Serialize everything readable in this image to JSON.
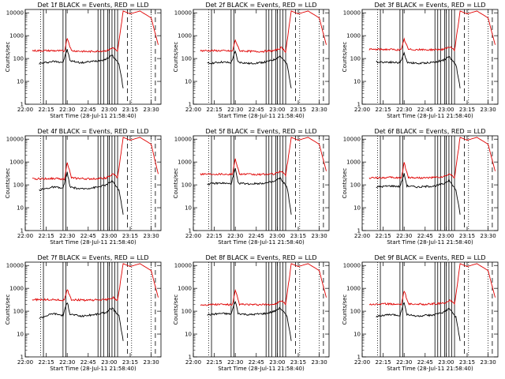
{
  "figure": {
    "background": "#ffffff",
    "black_color": "#000000",
    "red_color": "#e00000"
  },
  "chart_data": [
    {
      "type": "line",
      "title": "Det 1f BLACK = Events, RED = LLD",
      "xlabel": "Start Time (28-Jul-11 21:58:40)",
      "ylabel": "Counts/sec",
      "xticks": [
        "22:00",
        "22:15",
        "22:30",
        "22:45",
        "23:00",
        "23:15",
        "23:30"
      ],
      "yticks": [
        "1",
        "10",
        "100",
        "1000",
        "10000"
      ],
      "ylim": [
        1,
        14000
      ],
      "yscale": "log",
      "variant": 0,
      "series": [
        {
          "color": "#000000",
          "x": [
            "22:10",
            "22:20",
            "22:27",
            "22:30",
            "22:32",
            "22:40",
            "22:52",
            "22:58",
            "23:02",
            "23:07",
            "23:10"
          ],
          "y": [
            60,
            75,
            70,
            250,
            80,
            65,
            80,
            95,
            140,
            60,
            5
          ]
        },
        {
          "color": "#e00000",
          "x": [
            "22:05",
            "22:20",
            "22:28",
            "22:30",
            "22:33",
            "22:45",
            "22:58",
            "23:03",
            "23:06",
            "23:10",
            "23:15",
            "23:22",
            "23:30",
            "23:35"
          ],
          "y": [
            220,
            220,
            210,
            800,
            220,
            200,
            220,
            300,
            200,
            12000,
            9000,
            12000,
            6000,
            400
          ]
        }
      ]
    },
    {
      "type": "line",
      "title": "Det 2f BLACK = Events, RED = LLD",
      "xlabel": "Start Time (28-Jul-11 21:58:40)",
      "ylabel": "Counts/sec",
      "xticks": [
        "22:00",
        "22:15",
        "22:30",
        "22:45",
        "23:00",
        "23:15",
        "23:30"
      ],
      "yticks": [
        "1",
        "10",
        "100",
        "1000",
        "10000"
      ],
      "ylim": [
        1,
        14000
      ],
      "yscale": "log",
      "variant": 1,
      "series": [
        {
          "color": "#000000",
          "x": [
            "22:10",
            "22:20",
            "22:27",
            "22:30",
            "22:32",
            "22:40",
            "22:52",
            "22:58",
            "23:02",
            "23:07",
            "23:10"
          ],
          "y": [
            60,
            70,
            65,
            200,
            70,
            60,
            70,
            90,
            130,
            55,
            5
          ]
        },
        {
          "color": "#e00000",
          "x": [
            "22:05",
            "22:20",
            "22:28",
            "22:30",
            "22:33",
            "22:45",
            "22:58",
            "23:03",
            "23:06",
            "23:10",
            "23:15",
            "23:22",
            "23:30",
            "23:35"
          ],
          "y": [
            220,
            220,
            210,
            650,
            220,
            200,
            220,
            300,
            200,
            12000,
            9000,
            12000,
            6000,
            400
          ]
        }
      ]
    },
    {
      "type": "line",
      "title": "Det 3f BLACK = Events, RED = LLD",
      "xlabel": "Start Time (28-Jul-11 21:58:40)",
      "ylabel": "Counts/sec",
      "xticks": [
        "22:00",
        "22:15",
        "22:30",
        "22:45",
        "23:00",
        "23:15",
        "23:30"
      ],
      "yticks": [
        "1",
        "10",
        "100",
        "1000",
        "10000"
      ],
      "ylim": [
        1,
        14000
      ],
      "yscale": "log",
      "variant": 2,
      "series": [
        {
          "color": "#000000",
          "x": [
            "22:10",
            "22:20",
            "22:27",
            "22:30",
            "22:32",
            "22:40",
            "22:52",
            "22:58",
            "23:02",
            "23:07",
            "23:10"
          ],
          "y": [
            70,
            70,
            65,
            170,
            70,
            60,
            70,
            85,
            120,
            55,
            5
          ]
        },
        {
          "color": "#e00000",
          "x": [
            "22:05",
            "22:20",
            "22:28",
            "22:30",
            "22:33",
            "22:45",
            "22:58",
            "23:03",
            "23:06",
            "23:10",
            "23:15",
            "23:22",
            "23:30",
            "23:35"
          ],
          "y": [
            250,
            250,
            240,
            700,
            250,
            240,
            250,
            320,
            220,
            12000,
            9000,
            12000,
            6000,
            400
          ]
        }
      ]
    },
    {
      "type": "line",
      "title": "Det 4f BLACK = Events, RED = LLD",
      "xlabel": "Start Time (28-Jul-11 21:58:40)",
      "ylabel": "Counts/sec",
      "xticks": [
        "22:00",
        "22:15",
        "22:30",
        "22:45",
        "23:00",
        "23:15",
        "23:30"
      ],
      "yticks": [
        "1",
        "10",
        "100",
        "1000",
        "10000"
      ],
      "ylim": [
        1,
        14000
      ],
      "yscale": "log",
      "variant": 3,
      "series": [
        {
          "color": "#000000",
          "x": [
            "22:10",
            "22:20",
            "22:27",
            "22:30",
            "22:32",
            "22:40",
            "22:52",
            "22:58",
            "23:02",
            "23:07",
            "23:10"
          ],
          "y": [
            60,
            80,
            70,
            350,
            80,
            65,
            80,
            100,
            150,
            60,
            5
          ]
        },
        {
          "color": "#e00000",
          "x": [
            "22:05",
            "22:20",
            "22:28",
            "22:30",
            "22:33",
            "22:45",
            "22:58",
            "23:03",
            "23:06",
            "23:10",
            "23:15",
            "23:22",
            "23:30",
            "23:35"
          ],
          "y": [
            180,
            190,
            180,
            1000,
            200,
            180,
            200,
            300,
            200,
            12000,
            9000,
            12000,
            6000,
            300
          ]
        }
      ]
    },
    {
      "type": "line",
      "title": "Det 5f BLACK = Events, RED = LLD",
      "xlabel": "Start Time (28-Jul-11 21:58:40)",
      "ylabel": "Counts/sec",
      "xticks": [
        "22:00",
        "22:15",
        "22:30",
        "22:45",
        "23:00",
        "23:15",
        "23:30"
      ],
      "yticks": [
        "1",
        "10",
        "100",
        "1000",
        "10000"
      ],
      "ylim": [
        1,
        14000
      ],
      "yscale": "log",
      "variant": 4,
      "series": [
        {
          "color": "#000000",
          "x": [
            "22:10",
            "22:20",
            "22:27",
            "22:30",
            "22:32",
            "22:40",
            "22:52",
            "22:58",
            "23:02",
            "23:07",
            "23:10"
          ],
          "y": [
            110,
            120,
            110,
            500,
            120,
            110,
            120,
            140,
            200,
            80,
            5
          ]
        },
        {
          "color": "#e00000",
          "x": [
            "22:05",
            "22:20",
            "22:28",
            "22:30",
            "22:33",
            "22:45",
            "22:58",
            "23:03",
            "23:06",
            "23:10",
            "23:15",
            "23:22",
            "23:30",
            "23:35"
          ],
          "y": [
            300,
            300,
            290,
            1400,
            300,
            280,
            300,
            400,
            260,
            12000,
            9000,
            12000,
            6000,
            400
          ]
        }
      ]
    },
    {
      "type": "line",
      "title": "Det 6f BLACK = Events, RED = LLD",
      "xlabel": "Start Time (28-Jul-11 21:58:40)",
      "ylabel": "Counts/sec",
      "xticks": [
        "22:00",
        "22:15",
        "22:30",
        "22:45",
        "23:00",
        "23:15",
        "23:30"
      ],
      "yticks": [
        "1",
        "10",
        "100",
        "1000",
        "10000"
      ],
      "ylim": [
        1,
        14000
      ],
      "yscale": "log",
      "variant": 5,
      "series": [
        {
          "color": "#000000",
          "x": [
            "22:10",
            "22:20",
            "22:27",
            "22:30",
            "22:32",
            "22:40",
            "22:52",
            "22:58",
            "23:02",
            "23:07",
            "23:10"
          ],
          "y": [
            80,
            90,
            85,
            300,
            90,
            80,
            90,
            110,
            160,
            60,
            5
          ]
        },
        {
          "color": "#e00000",
          "x": [
            "22:05",
            "22:20",
            "22:28",
            "22:30",
            "22:33",
            "22:45",
            "22:58",
            "23:03",
            "23:06",
            "23:10",
            "23:15",
            "23:22",
            "23:30",
            "23:35"
          ],
          "y": [
            200,
            210,
            200,
            900,
            210,
            200,
            220,
            300,
            200,
            12000,
            9000,
            12000,
            6000,
            400
          ]
        }
      ]
    },
    {
      "type": "line",
      "title": "Det 7f BLACK = Events, RED = LLD",
      "xlabel": "Start Time (28-Jul-11 21:58:40)",
      "ylabel": "Counts/sec",
      "xticks": [
        "22:00",
        "22:15",
        "22:30",
        "22:45",
        "23:00",
        "23:15",
        "23:30"
      ],
      "yticks": [
        "1",
        "10",
        "100",
        "1000",
        "10000"
      ],
      "ylim": [
        1,
        14000
      ],
      "yscale": "log",
      "variant": 6,
      "series": [
        {
          "color": "#000000",
          "x": [
            "22:10",
            "22:20",
            "22:27",
            "22:30",
            "22:32",
            "22:40",
            "22:52",
            "22:58",
            "23:02",
            "23:07",
            "23:10"
          ],
          "y": [
            50,
            80,
            65,
            250,
            75,
            60,
            75,
            90,
            140,
            60,
            5
          ]
        },
        {
          "color": "#e00000",
          "x": [
            "22:05",
            "22:20",
            "22:28",
            "22:30",
            "22:33",
            "22:45",
            "22:58",
            "23:03",
            "23:06",
            "23:10",
            "23:15",
            "23:22",
            "23:30",
            "23:35"
          ],
          "y": [
            320,
            320,
            300,
            900,
            320,
            300,
            320,
            400,
            280,
            12000,
            9000,
            12000,
            6000,
            400
          ]
        }
      ]
    },
    {
      "type": "line",
      "title": "Det 8f BLACK = Events, RED = LLD",
      "xlabel": "Start Time (28-Jul-11 21:58:40)",
      "ylabel": "Counts/sec",
      "xticks": [
        "22:00",
        "22:15",
        "22:30",
        "22:45",
        "23:00",
        "23:15",
        "23:30"
      ],
      "yticks": [
        "1",
        "10",
        "100",
        "1000",
        "10000"
      ],
      "ylim": [
        1,
        14000
      ],
      "yscale": "log",
      "variant": 7,
      "series": [
        {
          "color": "#000000",
          "x": [
            "22:10",
            "22:20",
            "22:27",
            "22:30",
            "22:32",
            "22:40",
            "22:52",
            "22:58",
            "23:02",
            "23:07",
            "23:10"
          ],
          "y": [
            70,
            80,
            75,
            280,
            80,
            70,
            80,
            100,
            140,
            60,
            5
          ]
        },
        {
          "color": "#e00000",
          "x": [
            "22:05",
            "22:20",
            "22:28",
            "22:30",
            "22:33",
            "22:45",
            "22:58",
            "23:03",
            "23:06",
            "23:10",
            "23:15",
            "23:22",
            "23:30",
            "23:35"
          ],
          "y": [
            190,
            200,
            190,
            800,
            200,
            190,
            200,
            280,
            200,
            12000,
            9000,
            12000,
            6000,
            400
          ]
        }
      ]
    },
    {
      "type": "line",
      "title": "Det 9f BLACK = Events, RED = LLD",
      "xlabel": "Start Time (28-Jul-11 21:58:40)",
      "ylabel": "Counts/sec",
      "xticks": [
        "22:00",
        "22:15",
        "22:30",
        "22:45",
        "23:00",
        "23:15",
        "23:30"
      ],
      "yticks": [
        "1",
        "10",
        "100",
        "1000",
        "10000"
      ],
      "ylim": [
        1,
        14000
      ],
      "yscale": "log",
      "variant": 8,
      "series": [
        {
          "color": "#000000",
          "x": [
            "22:10",
            "22:20",
            "22:27",
            "22:30",
            "22:32",
            "22:40",
            "22:52",
            "22:58",
            "23:02",
            "23:07",
            "23:10"
          ],
          "y": [
            60,
            70,
            65,
            250,
            70,
            60,
            70,
            90,
            130,
            55,
            5
          ]
        },
        {
          "color": "#e00000",
          "x": [
            "22:05",
            "22:20",
            "22:28",
            "22:30",
            "22:33",
            "22:45",
            "22:58",
            "23:03",
            "23:06",
            "23:10",
            "23:15",
            "23:22",
            "23:30",
            "23:35"
          ],
          "y": [
            200,
            210,
            200,
            800,
            210,
            200,
            220,
            300,
            200,
            12000,
            9000,
            12000,
            6000,
            400
          ]
        }
      ]
    }
  ]
}
